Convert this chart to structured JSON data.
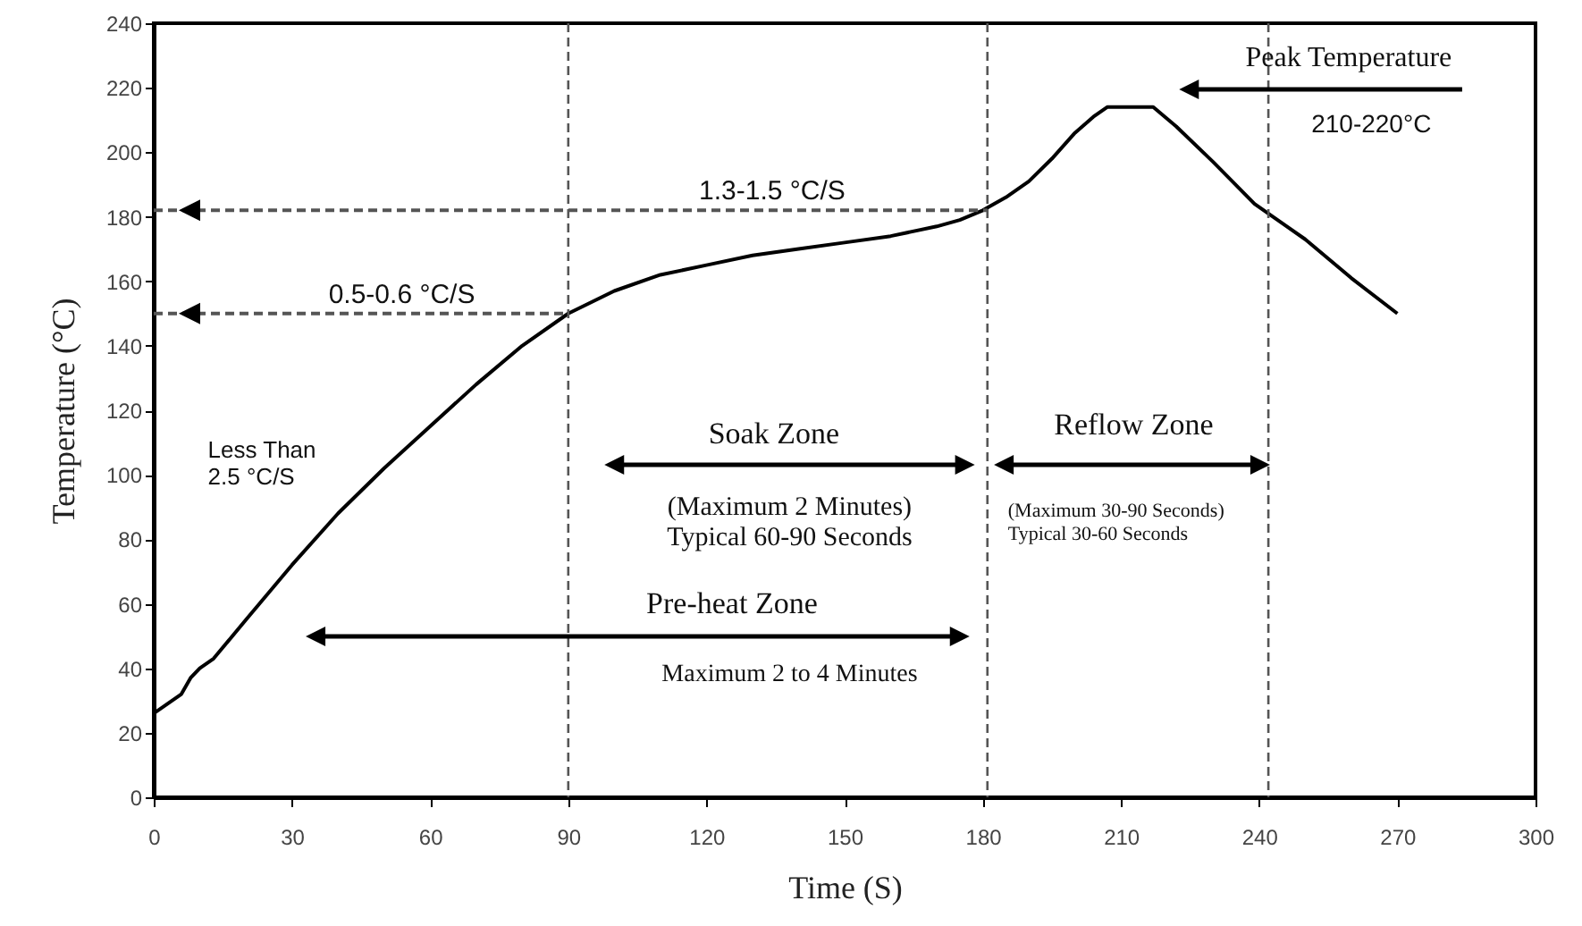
{
  "chart_data": {
    "type": "line",
    "xlabel": "Time (S)",
    "ylabel": "Temperature (°C)",
    "x": [
      0,
      3,
      6,
      8,
      10,
      13,
      20,
      30,
      40,
      50,
      60,
      70,
      80,
      90,
      100,
      110,
      120,
      130,
      140,
      150,
      160,
      170,
      175,
      180,
      185,
      190,
      195,
      200,
      204,
      207,
      217,
      222,
      230,
      239,
      250,
      260,
      270
    ],
    "series": [
      {
        "color": "#000000",
        "values": [
          26,
          29,
          32,
          37,
          40,
          43,
          55,
          72,
          88,
          102,
          115,
          128,
          140,
          150,
          157,
          162,
          165,
          168,
          170,
          172,
          174,
          177,
          179,
          182,
          186,
          191,
          198,
          206,
          211,
          214,
          214,
          208,
          197,
          184,
          173,
          161,
          150
        ]
      }
    ],
    "xlim": [
      0,
      300
    ],
    "xticks": [
      0,
      30,
      60,
      90,
      120,
      150,
      180,
      210,
      240,
      270,
      300
    ],
    "ylim": [
      0,
      240
    ],
    "yticks": [
      0,
      20,
      40,
      60,
      80,
      100,
      120,
      140,
      160,
      180,
      200,
      220,
      240
    ],
    "grid": false,
    "marker": "none",
    "line_style": "solid",
    "ref_lines": [
      {
        "axis": "x",
        "value": 90,
        "line_style": "dashed"
      },
      {
        "axis": "x",
        "value": 181,
        "line_style": "dashed"
      },
      {
        "axis": "x",
        "value": 242,
        "line_style": "dashed"
      },
      {
        "axis": "y",
        "value": 150,
        "label": "0.5-0.6 °C/S",
        "line_style": "dashed"
      },
      {
        "axis": "y",
        "value": 182,
        "label": "1.3-1.5 °C/S",
        "line_style": "dashed"
      }
    ],
    "annotations": [
      "Peak Temperature",
      "210-220°C",
      "Less Than\n2.5 °C/S",
      "(Maximum 2 Minutes)\nTypical 60-90 Seconds",
      "(Maximum 30-90 Seconds)\nTypical 30-60 Seconds",
      "Maximum 2 to 4 Minutes",
      "Soak Zone",
      "Reflow Zone",
      "Pre-heat Zone"
    ]
  }
}
